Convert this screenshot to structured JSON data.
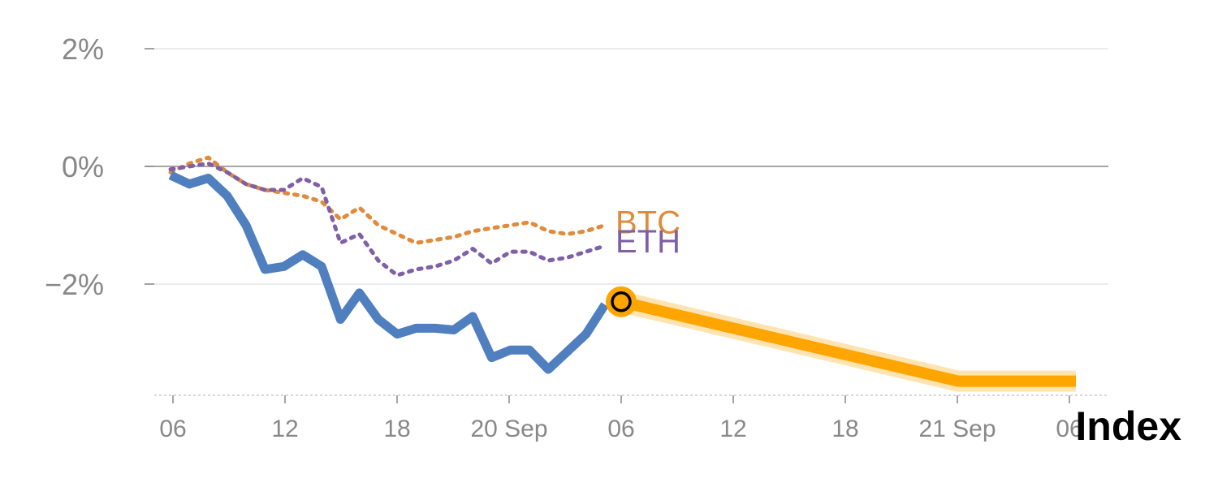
{
  "chart_data": {
    "type": "line",
    "title": "Index",
    "xlabel": "",
    "ylabel": "",
    "ylim": [
      -3.9,
      2.0
    ],
    "y_ticks": [
      {
        "value": 2,
        "label": "2%"
      },
      {
        "value": 0,
        "label": "0%"
      },
      {
        "value": -2,
        "label": "−2%"
      }
    ],
    "x_ticks": [
      "06",
      "12",
      "18",
      "20 Sep",
      "06",
      "12",
      "18",
      "21 Sep",
      "06"
    ],
    "grid": true,
    "series": [
      {
        "name": "Index",
        "color": "#4f7fbf",
        "style": "solid",
        "values": [
          -0.15,
          -0.3,
          -0.2,
          -0.5,
          -1.0,
          -1.75,
          -1.7,
          -1.5,
          -1.7,
          -2.6,
          -2.15,
          -2.6,
          -2.85,
          -2.75,
          -2.75,
          -2.78,
          -2.55,
          -3.25,
          -3.12,
          -3.12,
          -3.45,
          -3.15,
          -2.85,
          -2.35
        ]
      },
      {
        "name": "BTC",
        "color": "#e08a3c",
        "style": "dotted",
        "values": [
          -0.1,
          0.05,
          0.15,
          -0.1,
          -0.3,
          -0.4,
          -0.45,
          -0.5,
          -0.6,
          -0.9,
          -0.7,
          -1.0,
          -1.15,
          -1.3,
          -1.25,
          -1.2,
          -1.1,
          -1.05,
          -1.0,
          -0.95,
          -1.1,
          -1.15,
          -1.1,
          -1.0
        ]
      },
      {
        "name": "ETH",
        "color": "#7f5fa6",
        "style": "dotted",
        "values": [
          -0.05,
          0.0,
          0.05,
          -0.1,
          -0.3,
          -0.4,
          -0.4,
          -0.2,
          -0.35,
          -1.3,
          -1.15,
          -1.6,
          -1.85,
          -1.75,
          -1.7,
          -1.6,
          -1.4,
          -1.65,
          -1.45,
          -1.45,
          -1.6,
          -1.55,
          -1.45,
          -1.35
        ]
      }
    ],
    "projection": {
      "color": "#ffa500",
      "values": [
        -2.3,
        -3.65,
        -3.65
      ]
    }
  },
  "colors": {
    "axis": "#888888",
    "grid": "#e6e6e6",
    "zero_line": "#888888",
    "marker_fill": "#ffa500",
    "marker_stroke": "#000000"
  }
}
